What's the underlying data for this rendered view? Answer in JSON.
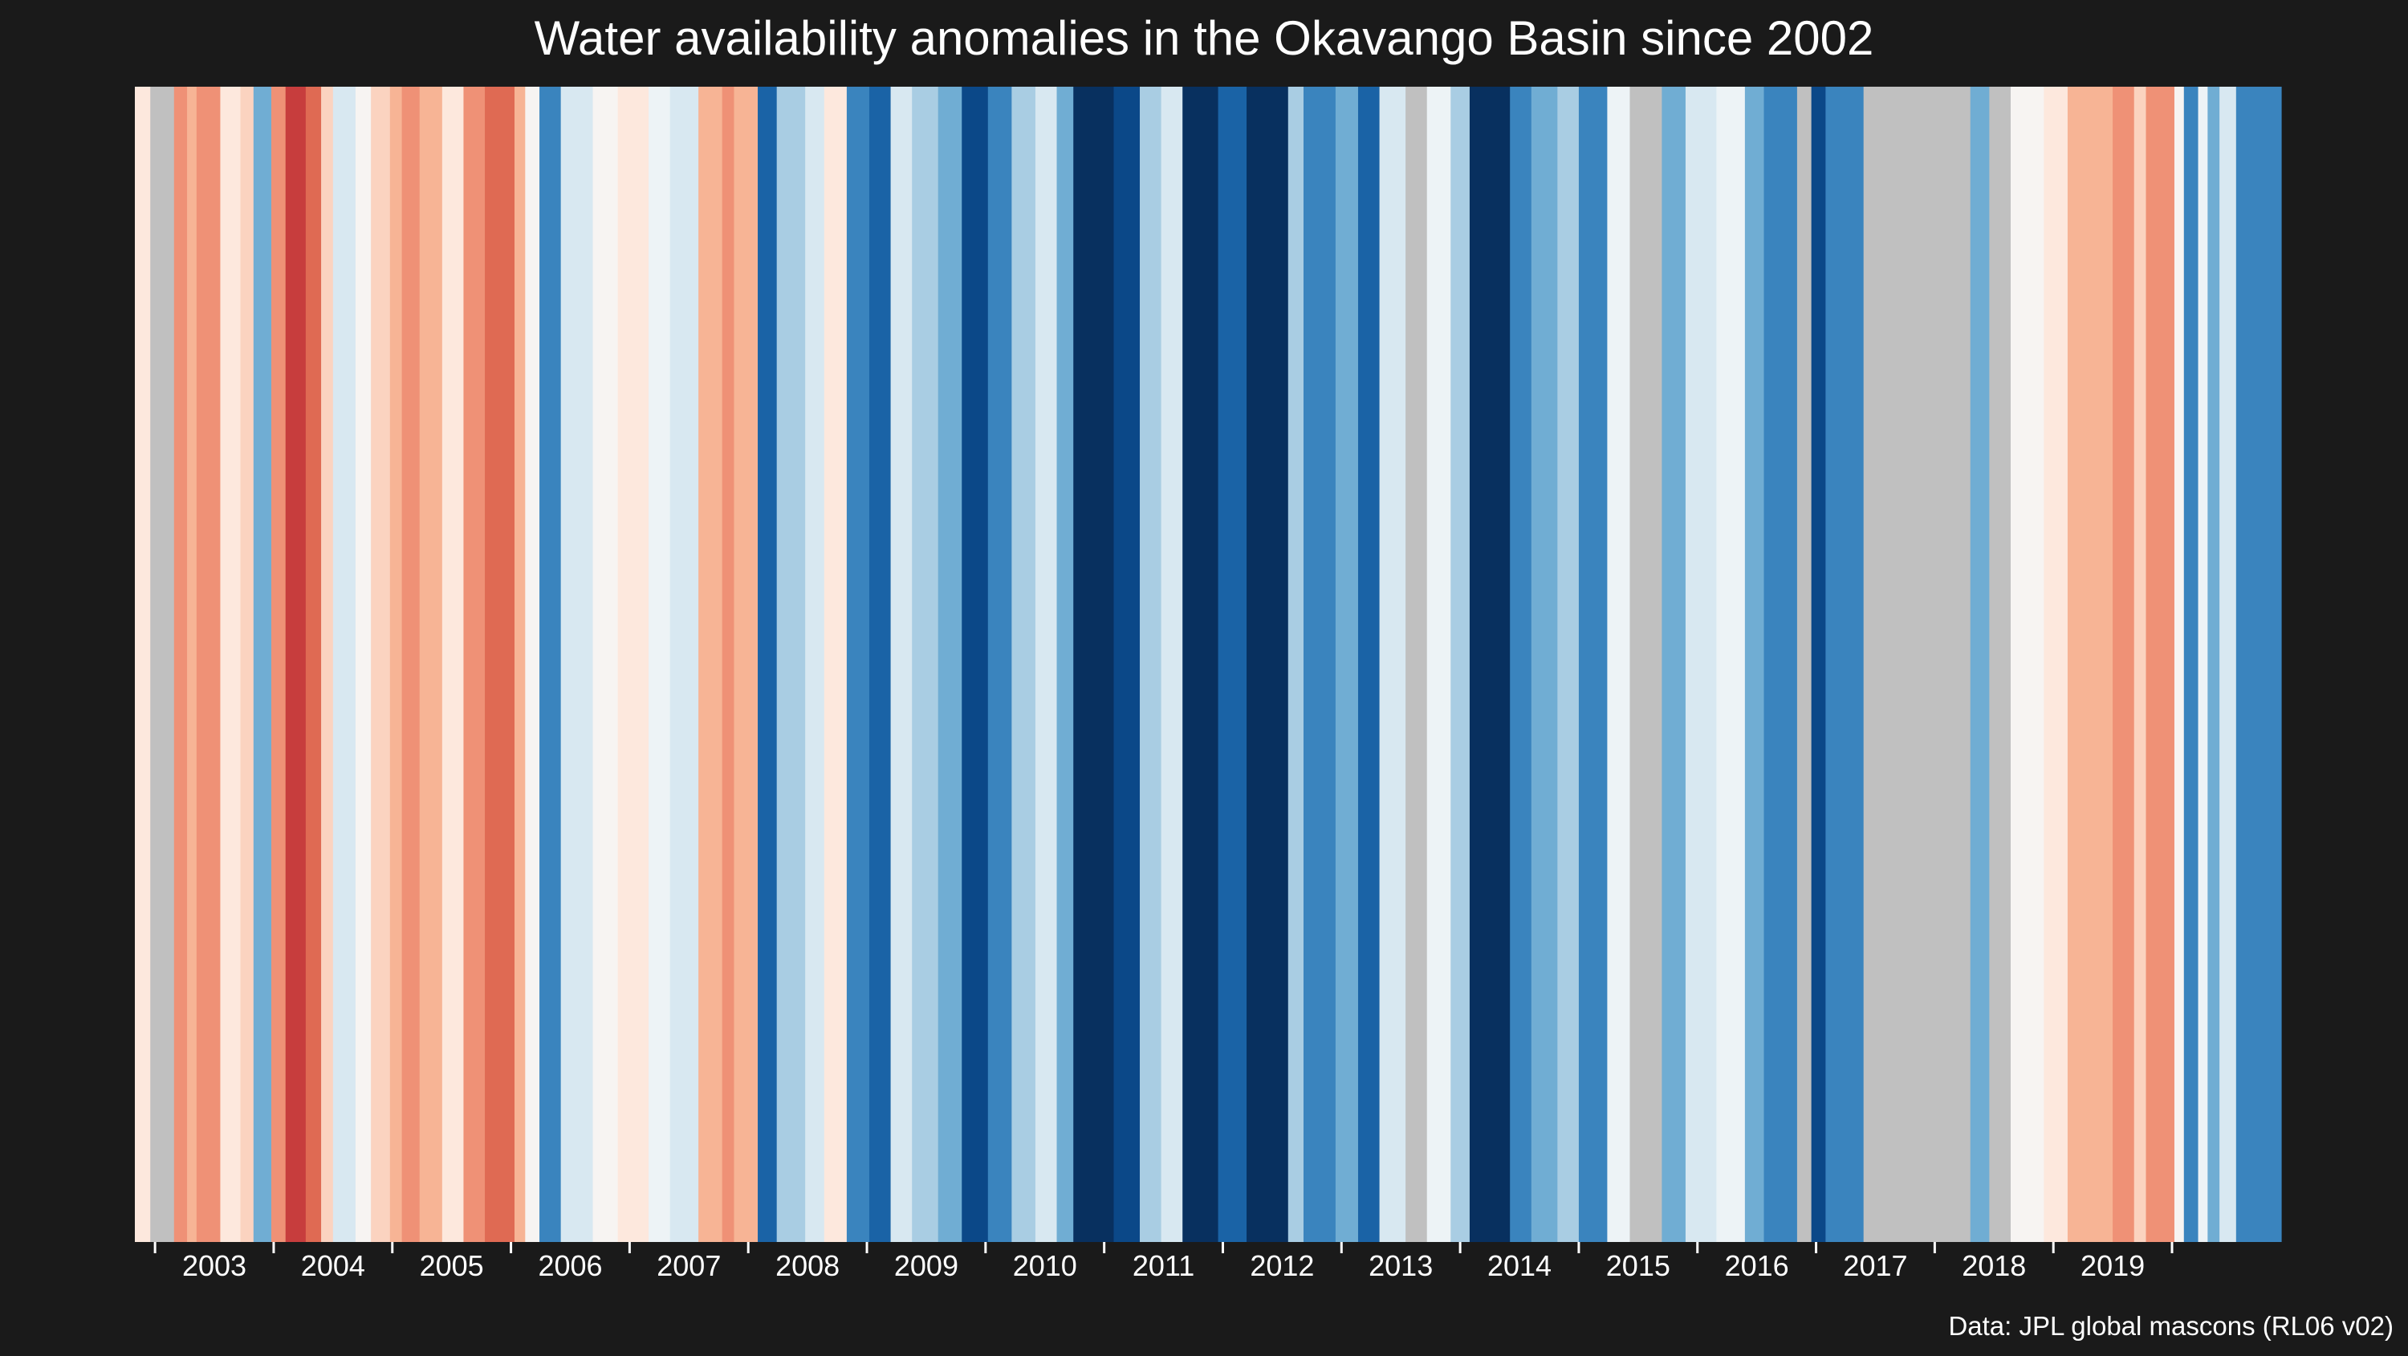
{
  "chart_data": {
    "type": "heatmap",
    "title": "Water availability anomalies in the Okavango Basin since 2002",
    "caption": "Data: JPL global mascons (RL06 v02)",
    "x_start": 2002.33,
    "x_end": 2020.42,
    "tick_labels": [
      "2003",
      "2004",
      "2005",
      "2006",
      "2007",
      "2008",
      "2009",
      "2010",
      "2011",
      "2012",
      "2013",
      "2014",
      "2015",
      "2016",
      "2017",
      "2018",
      "2019"
    ],
    "tick_positions": [
      2002.5,
      2003.5,
      2004.5,
      2005.5,
      2006.5,
      2007.5,
      2008.5,
      2009.5,
      2010.5,
      2011.5,
      2012.5,
      2013.5,
      2014.5,
      2015.5,
      2016.5,
      2017.5,
      2018.5,
      2019.5
    ],
    "grid": false,
    "colormap": "RdBu (red = dry anomaly, blue = wet anomaly, grey = missing data)",
    "missing_color": "#c0c0c0",
    "colors": {
      "neg4": "#c73d3d",
      "neg3": "#df6a53",
      "neg2": "#ef9176",
      "neg1": "#f7b495",
      "neg05": "#fbd3c0",
      "neg0": "#fde8dd",
      "zero": "#f7f4f2",
      "pos0": "#edf3f6",
      "pos05": "#d8e8f1",
      "pos1": "#a9cde3",
      "pos2": "#70add3",
      "pos3": "#3a84be",
      "pos4": "#1a63a6",
      "pos5": "#0b4888",
      "pos6": "#08305f",
      "missing": "#c0c0c0"
    },
    "stripes": [
      {
        "start": 2002.33,
        "end": 2002.46,
        "color": "neg0"
      },
      {
        "start": 2002.46,
        "end": 2002.66,
        "color": "missing"
      },
      {
        "start": 2002.66,
        "end": 2002.77,
        "color": "neg2"
      },
      {
        "start": 2002.77,
        "end": 2002.85,
        "color": "neg1"
      },
      {
        "start": 2002.85,
        "end": 2003.05,
        "color": "neg2"
      },
      {
        "start": 2003.05,
        "end": 2003.22,
        "color": "neg0"
      },
      {
        "start": 2003.22,
        "end": 2003.33,
        "color": "neg05"
      },
      {
        "start": 2003.33,
        "end": 2003.48,
        "color": "pos2"
      },
      {
        "start": 2003.48,
        "end": 2003.6,
        "color": "neg2"
      },
      {
        "start": 2003.6,
        "end": 2003.77,
        "color": "neg4"
      },
      {
        "start": 2003.77,
        "end": 2003.9,
        "color": "neg3"
      },
      {
        "start": 2003.9,
        "end": 2004.0,
        "color": "neg05"
      },
      {
        "start": 2004.0,
        "end": 2004.19,
        "color": "pos05"
      },
      {
        "start": 2004.19,
        "end": 2004.32,
        "color": "zero"
      },
      {
        "start": 2004.32,
        "end": 2004.48,
        "color": "neg05"
      },
      {
        "start": 2004.48,
        "end": 2004.58,
        "color": "neg1"
      },
      {
        "start": 2004.58,
        "end": 2004.73,
        "color": "neg2"
      },
      {
        "start": 2004.73,
        "end": 2004.92,
        "color": "neg1"
      },
      {
        "start": 2004.92,
        "end": 2005.1,
        "color": "neg0"
      },
      {
        "start": 2005.1,
        "end": 2005.28,
        "color": "neg2"
      },
      {
        "start": 2005.28,
        "end": 2005.53,
        "color": "neg3"
      },
      {
        "start": 2005.53,
        "end": 2005.62,
        "color": "neg1"
      },
      {
        "start": 2005.62,
        "end": 2005.74,
        "color": "zero"
      },
      {
        "start": 2005.74,
        "end": 2005.92,
        "color": "pos3"
      },
      {
        "start": 2005.92,
        "end": 2006.19,
        "color": "pos05"
      },
      {
        "start": 2006.19,
        "end": 2006.4,
        "color": "zero"
      },
      {
        "start": 2006.4,
        "end": 2006.66,
        "color": "neg0"
      },
      {
        "start": 2006.66,
        "end": 2006.84,
        "color": "pos0"
      },
      {
        "start": 2006.84,
        "end": 2007.08,
        "color": "pos05"
      },
      {
        "start": 2007.08,
        "end": 2007.28,
        "color": "neg1"
      },
      {
        "start": 2007.28,
        "end": 2007.38,
        "color": "neg2"
      },
      {
        "start": 2007.38,
        "end": 2007.58,
        "color": "neg1"
      },
      {
        "start": 2007.58,
        "end": 2007.74,
        "color": "pos4"
      },
      {
        "start": 2007.74,
        "end": 2007.98,
        "color": "pos1"
      },
      {
        "start": 2007.98,
        "end": 2008.14,
        "color": "pos05"
      },
      {
        "start": 2008.14,
        "end": 2008.33,
        "color": "neg0"
      },
      {
        "start": 2008.33,
        "end": 2008.52,
        "color": "pos3"
      },
      {
        "start": 2008.52,
        "end": 2008.7,
        "color": "pos4"
      },
      {
        "start": 2008.7,
        "end": 2008.88,
        "color": "pos05"
      },
      {
        "start": 2008.88,
        "end": 2009.1,
        "color": "pos1"
      },
      {
        "start": 2009.1,
        "end": 2009.3,
        "color": "pos2"
      },
      {
        "start": 2009.3,
        "end": 2009.52,
        "color": "pos5"
      },
      {
        "start": 2009.52,
        "end": 2009.72,
        "color": "pos3"
      },
      {
        "start": 2009.72,
        "end": 2009.92,
        "color": "pos1"
      },
      {
        "start": 2009.92,
        "end": 2010.1,
        "color": "pos05"
      },
      {
        "start": 2010.1,
        "end": 2010.24,
        "color": "pos2"
      },
      {
        "start": 2010.24,
        "end": 2010.58,
        "color": "pos6"
      },
      {
        "start": 2010.58,
        "end": 2010.8,
        "color": "pos5"
      },
      {
        "start": 2010.8,
        "end": 2010.98,
        "color": "pos1"
      },
      {
        "start": 2010.98,
        "end": 2011.16,
        "color": "pos05"
      },
      {
        "start": 2011.16,
        "end": 2011.46,
        "color": "pos6"
      },
      {
        "start": 2011.46,
        "end": 2011.7,
        "color": "pos4"
      },
      {
        "start": 2011.7,
        "end": 2012.05,
        "color": "pos6"
      },
      {
        "start": 2012.05,
        "end": 2012.18,
        "color": "pos1"
      },
      {
        "start": 2012.18,
        "end": 2012.45,
        "color": "pos3"
      },
      {
        "start": 2012.45,
        "end": 2012.64,
        "color": "pos2"
      },
      {
        "start": 2012.64,
        "end": 2012.82,
        "color": "pos4"
      },
      {
        "start": 2012.82,
        "end": 2013.04,
        "color": "pos05"
      },
      {
        "start": 2013.04,
        "end": 2013.22,
        "color": "missing"
      },
      {
        "start": 2013.22,
        "end": 2013.42,
        "color": "pos0"
      },
      {
        "start": 2013.42,
        "end": 2013.58,
        "color": "pos1"
      },
      {
        "start": 2013.58,
        "end": 2013.92,
        "color": "pos6"
      },
      {
        "start": 2013.92,
        "end": 2014.1,
        "color": "pos3"
      },
      {
        "start": 2014.1,
        "end": 2014.32,
        "color": "pos2"
      },
      {
        "start": 2014.32,
        "end": 2014.5,
        "color": "pos1"
      },
      {
        "start": 2014.5,
        "end": 2014.74,
        "color": "pos3"
      },
      {
        "start": 2014.74,
        "end": 2014.93,
        "color": "pos0"
      },
      {
        "start": 2014.93,
        "end": 2015.2,
        "color": "missing"
      },
      {
        "start": 2015.2,
        "end": 2015.4,
        "color": "pos2"
      },
      {
        "start": 2015.4,
        "end": 2015.66,
        "color": "pos05"
      },
      {
        "start": 2015.66,
        "end": 2015.9,
        "color": "pos0"
      },
      {
        "start": 2015.9,
        "end": 2016.06,
        "color": "pos2"
      },
      {
        "start": 2016.06,
        "end": 2016.34,
        "color": "pos3"
      },
      {
        "start": 2016.34,
        "end": 2016.46,
        "color": "missing"
      },
      {
        "start": 2016.46,
        "end": 2016.58,
        "color": "pos5"
      },
      {
        "start": 2016.58,
        "end": 2016.9,
        "color": "pos3"
      },
      {
        "start": 2016.9,
        "end": 2017.8,
        "color": "missing"
      },
      {
        "start": 2017.8,
        "end": 2017.96,
        "color": "pos2"
      },
      {
        "start": 2017.96,
        "end": 2018.14,
        "color": "missing"
      },
      {
        "start": 2018.14,
        "end": 2018.42,
        "color": "zero"
      },
      {
        "start": 2018.42,
        "end": 2018.62,
        "color": "neg0"
      },
      {
        "start": 2018.62,
        "end": 2018.8,
        "color": "neg1"
      },
      {
        "start": 2018.8,
        "end": 2019.0,
        "color": "neg1"
      },
      {
        "start": 2019.0,
        "end": 2019.18,
        "color": "neg2"
      },
      {
        "start": 2019.18,
        "end": 2019.28,
        "color": "neg05"
      },
      {
        "start": 2019.28,
        "end": 2019.52,
        "color": "neg2"
      },
      {
        "start": 2019.52,
        "end": 2019.6,
        "color": "zero"
      },
      {
        "start": 2019.6,
        "end": 2019.72,
        "color": "pos3"
      },
      {
        "start": 2019.72,
        "end": 2019.8,
        "color": "pos0"
      },
      {
        "start": 2019.8,
        "end": 2019.9,
        "color": "pos2"
      },
      {
        "start": 2019.9,
        "end": 2020.04,
        "color": "pos05"
      },
      {
        "start": 2020.04,
        "end": 2020.28,
        "color": "pos3"
      },
      {
        "start": 2020.28,
        "end": 2020.42,
        "color": "pos3"
      }
    ]
  }
}
